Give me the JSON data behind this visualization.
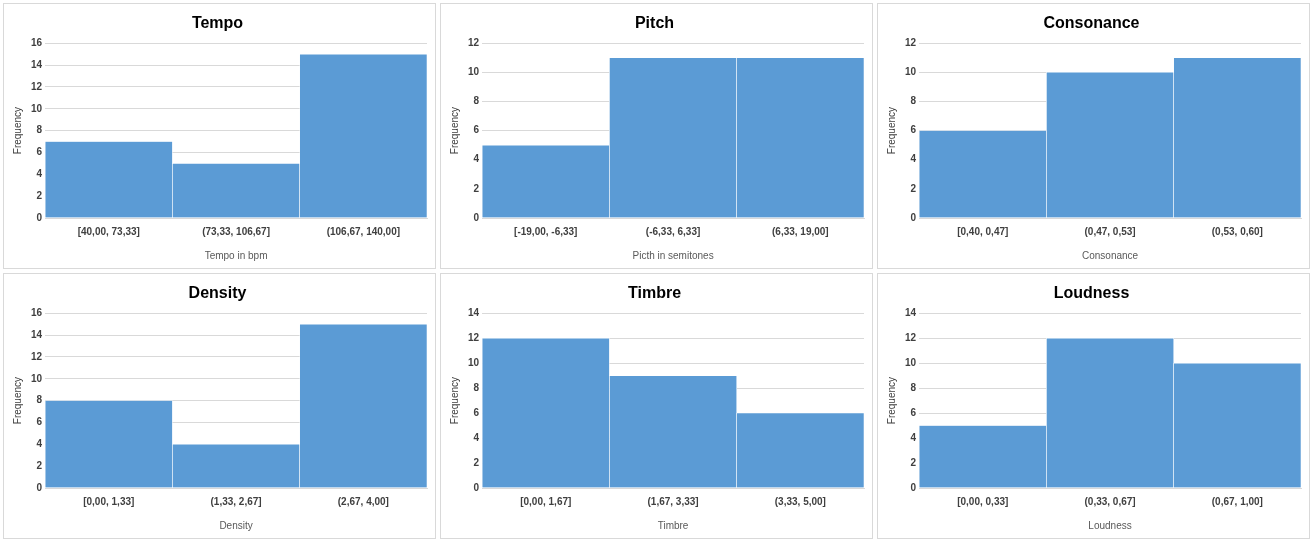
{
  "chart_data": [
    {
      "type": "bar",
      "title": "Tempo",
      "xlabel": "Tempo in bpm",
      "ylabel": "Frequency",
      "categories": [
        "[40,00, 73,33]",
        "(73,33, 106,67]",
        "(106,67, 140,00]"
      ],
      "values": [
        7,
        5,
        15
      ],
      "color": "#5b9bd5",
      "ylim": [
        0,
        16
      ],
      "yticks": [
        0,
        2,
        4,
        6,
        8,
        10,
        12,
        14,
        16
      ],
      "grid": "y"
    },
    {
      "type": "bar",
      "title": "Pitch",
      "xlabel": "Picth in semitones",
      "ylabel": "Frequency",
      "categories": [
        "[-19,00, -6,33]",
        "(-6,33, 6,33]",
        "(6,33, 19,00]"
      ],
      "values": [
        5,
        11,
        11
      ],
      "color": "#5b9bd5",
      "ylim": [
        0,
        12
      ],
      "yticks": [
        0,
        2,
        4,
        6,
        8,
        10,
        12
      ],
      "grid": "y"
    },
    {
      "type": "bar",
      "title": "Consonance",
      "xlabel": "Consonance",
      "ylabel": "Frequency",
      "categories": [
        "[0,40, 0,47]",
        "(0,47, 0,53]",
        "(0,53, 0,60]"
      ],
      "values": [
        6,
        10,
        11
      ],
      "color": "#5b9bd5",
      "ylim": [
        0,
        12
      ],
      "yticks": [
        0,
        2,
        4,
        6,
        8,
        10,
        12
      ],
      "grid": "y"
    },
    {
      "type": "bar",
      "title": "Density",
      "xlabel": "Density",
      "ylabel": "Frequency",
      "categories": [
        "[0,00, 1,33]",
        "(1,33, 2,67]",
        "(2,67, 4,00]"
      ],
      "values": [
        8,
        4,
        15
      ],
      "color": "#5b9bd5",
      "ylim": [
        0,
        16
      ],
      "yticks": [
        0,
        2,
        4,
        6,
        8,
        10,
        12,
        14,
        16
      ],
      "grid": "y"
    },
    {
      "type": "bar",
      "title": "Timbre",
      "xlabel": "Timbre",
      "ylabel": "Frequency",
      "categories": [
        "[0,00, 1,67]",
        "(1,67, 3,33]",
        "(3,33, 5,00]"
      ],
      "values": [
        12,
        9,
        6
      ],
      "color": "#5b9bd5",
      "ylim": [
        0,
        14
      ],
      "yticks": [
        0,
        2,
        4,
        6,
        8,
        10,
        12,
        14
      ],
      "grid": "y"
    },
    {
      "type": "bar",
      "title": "Loudness",
      "xlabel": "Loudness",
      "ylabel": "Frequency",
      "categories": [
        "[0,00, 0,33]",
        "(0,33, 0,67]",
        "(0,67, 1,00]"
      ],
      "values": [
        5,
        12,
        10
      ],
      "color": "#5b9bd5",
      "ylim": [
        0,
        14
      ],
      "yticks": [
        0,
        2,
        4,
        6,
        8,
        10,
        12,
        14
      ],
      "grid": "y"
    }
  ]
}
